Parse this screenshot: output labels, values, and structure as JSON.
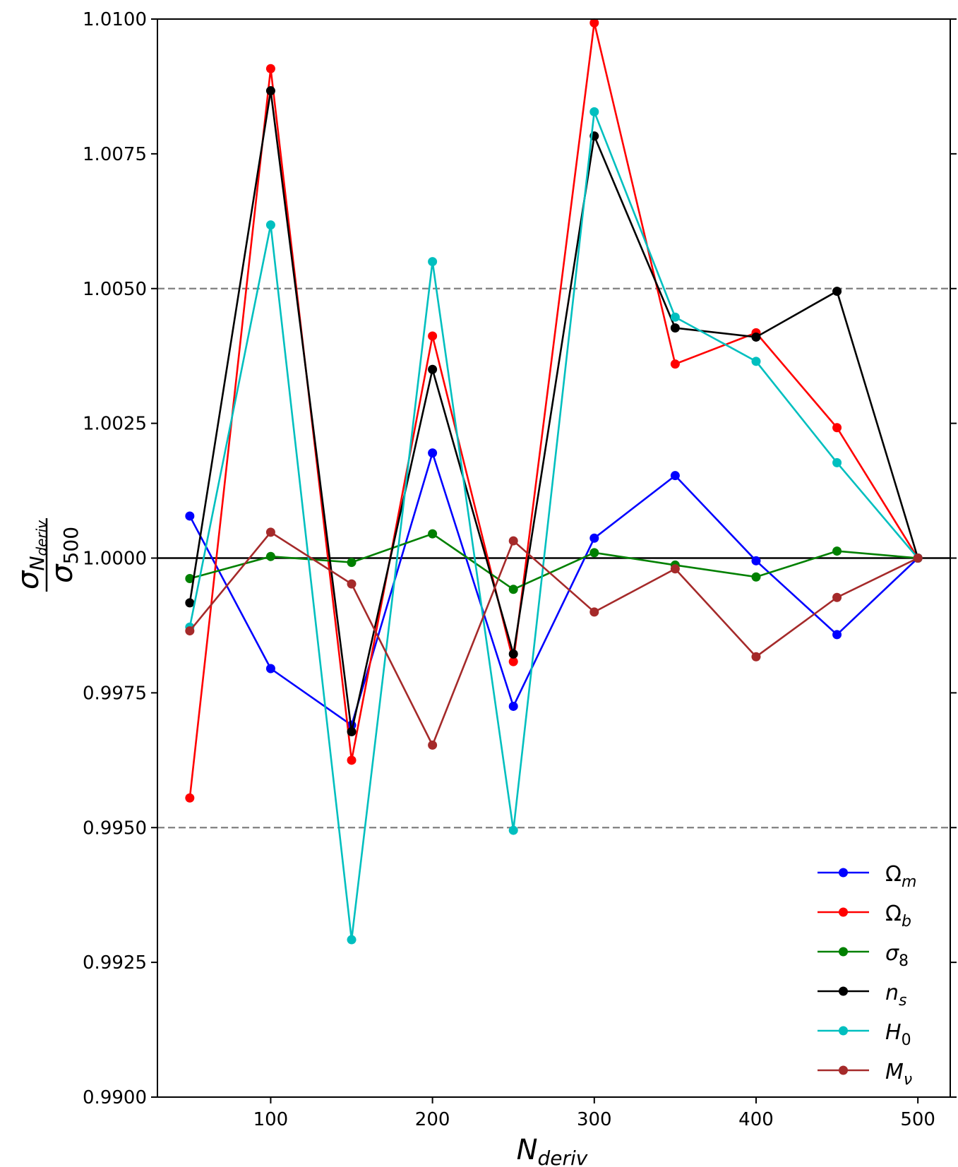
{
  "chart_data": {
    "type": "line",
    "xlabel": "N",
    "xlabel_sub": "deriv",
    "ylabel": {
      "numerator": "σ",
      "numerator_sub": "N",
      "numerator_subsub": "deriv",
      "denominator": "σ",
      "denominator_sub": "500"
    },
    "x": [
      50,
      100,
      150,
      200,
      250,
      300,
      350,
      400,
      450,
      500
    ],
    "xlim": [
      30,
      520
    ],
    "ylim": [
      0.99,
      1.01
    ],
    "xticks": [
      100,
      200,
      300,
      400,
      500
    ],
    "xtick_labels": [
      "100",
      "200",
      "300",
      "400",
      "500"
    ],
    "yticks": [
      0.99,
      0.9925,
      0.995,
      0.9975,
      1.0,
      1.0025,
      1.005,
      1.0075,
      1.01
    ],
    "ytick_labels": [
      "0.9900",
      "0.9925",
      "0.9950",
      "0.9975",
      "1.0000",
      "1.0025",
      "1.0050",
      "1.0075",
      "1.0100"
    ],
    "reference_lines": [
      {
        "y": 1.005,
        "style": "dashed",
        "color": "#808080"
      },
      {
        "y": 0.995,
        "style": "dashed",
        "color": "#808080"
      },
      {
        "y": 1.0,
        "style": "solid",
        "color": "#000000"
      }
    ],
    "legend_position": "bottom-right",
    "series": [
      {
        "name": "Ω",
        "sub": "m",
        "color": "#0000ff",
        "values": [
          1.00078,
          0.99795,
          0.9969,
          1.00195,
          0.99725,
          1.00037,
          1.00153,
          0.99995,
          0.99858,
          1.0
        ]
      },
      {
        "name": "Ω",
        "sub": "b",
        "color": "#ff0000",
        "values": [
          0.99555,
          1.00908,
          0.99625,
          1.00412,
          0.99808,
          1.00993,
          1.0036,
          1.00418,
          1.00242,
          1.0
        ]
      },
      {
        "name": "σ",
        "sub": "8",
        "color": "#008000",
        "values": [
          0.99962,
          1.00003,
          0.99992,
          1.00045,
          0.99942,
          1.0001,
          0.99987,
          0.99965,
          1.00013,
          1.0
        ]
      },
      {
        "name": "n",
        "sub": "s",
        "color": "#000000",
        "values": [
          0.99917,
          1.00867,
          0.99678,
          1.0035,
          0.99822,
          1.00783,
          1.00427,
          1.0041,
          1.00495,
          1.0
        ]
      },
      {
        "name": "H",
        "sub": "0",
        "color": "#00bfbf",
        "values": [
          0.99872,
          1.00618,
          0.99292,
          1.0055,
          0.99495,
          1.00828,
          1.00447,
          1.00365,
          1.00177,
          1.0
        ]
      },
      {
        "name": "M",
        "sub": "ν",
        "color": "#a52a2a",
        "values": [
          0.99865,
          1.00048,
          0.99952,
          0.99653,
          1.00032,
          0.999,
          0.9998,
          0.99817,
          0.99927,
          1.0
        ]
      }
    ]
  }
}
